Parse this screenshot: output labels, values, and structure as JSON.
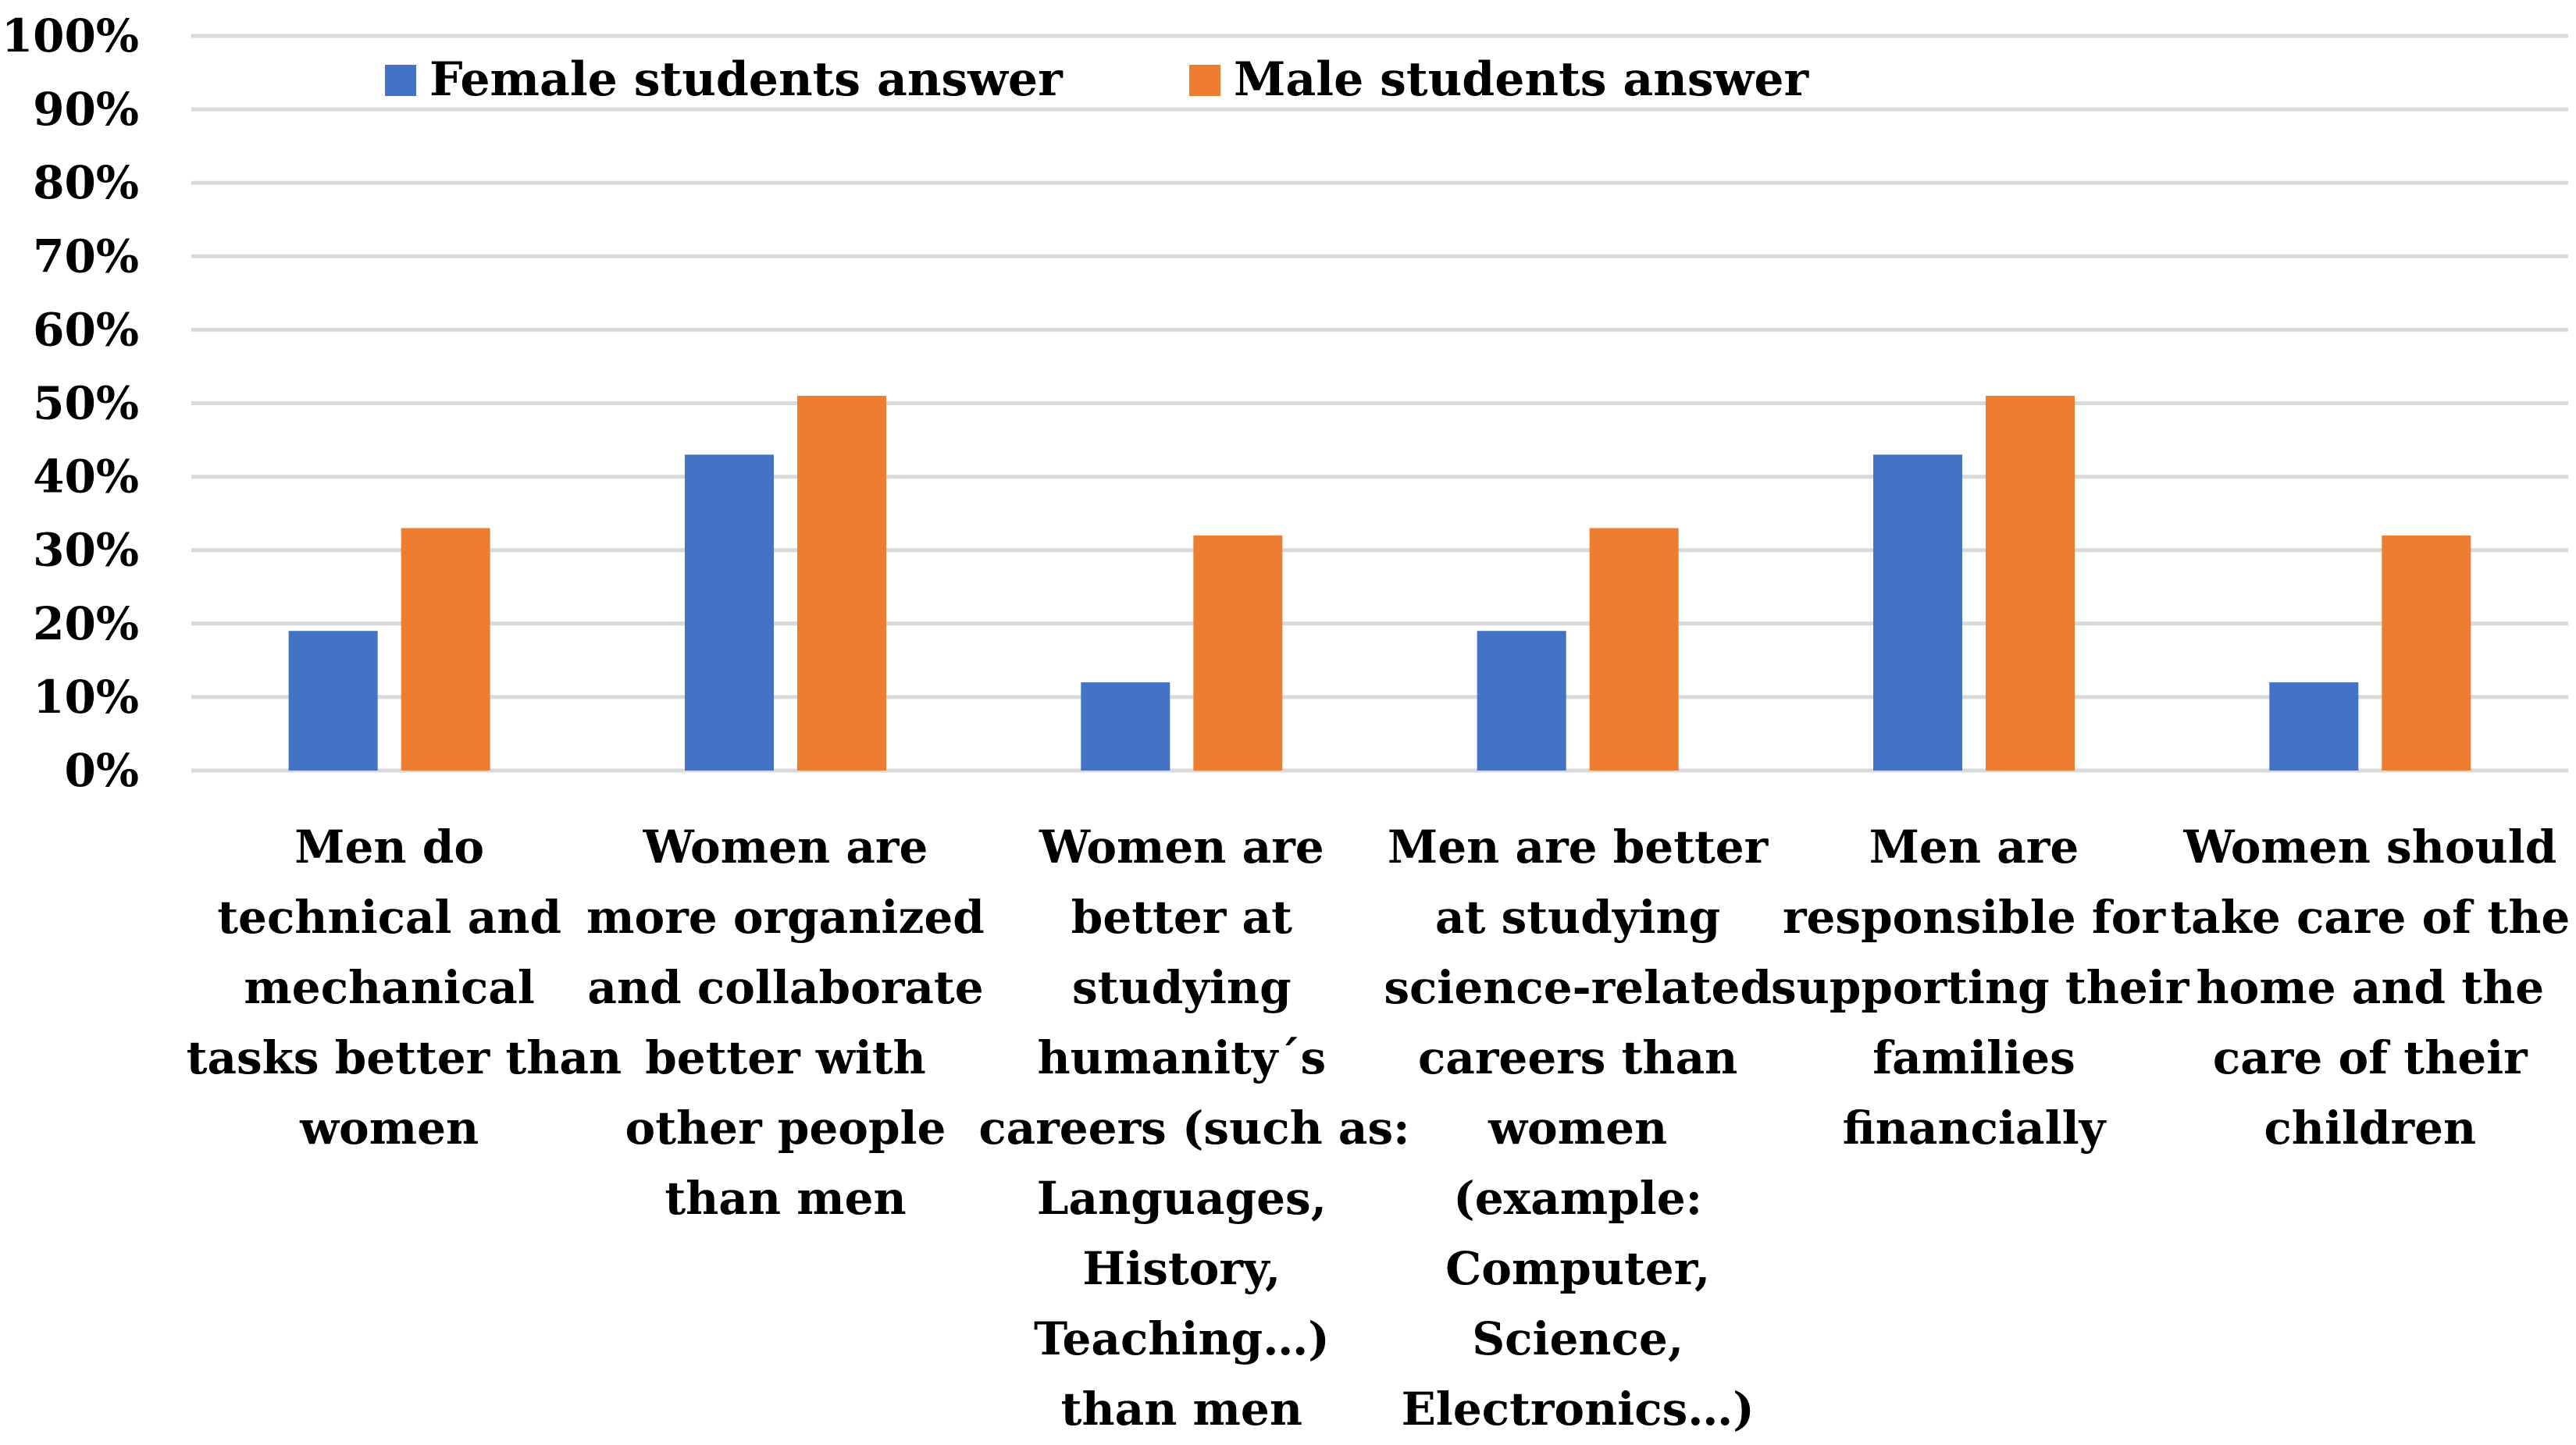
{
  "chart_data": {
    "type": "bar",
    "categories": [
      [
        "Men do",
        "technical and",
        "mechanical",
        "tasks better than",
        "women"
      ],
      [
        "Women are",
        "more organized",
        "and collaborate",
        "better with",
        "other people",
        "than men"
      ],
      [
        "Women are",
        "better at",
        "studying",
        "humanity´s",
        "careers (such as:",
        "Languages,",
        "History,",
        "Teaching…)",
        "than men"
      ],
      [
        "Men are better",
        "at studying",
        "science-related",
        "careers than",
        "women",
        "(example:",
        "Computer,",
        "Science,",
        "Electronics…)"
      ],
      [
        "Men are",
        "responsible for",
        "supporting their",
        "families",
        "financially"
      ],
      [
        "Women should",
        "take care of the",
        "home and the",
        "care of their",
        "children"
      ]
    ],
    "series": [
      {
        "name": "Female students answer",
        "color": "#4472C4",
        "values": [
          19,
          43,
          12,
          19,
          43,
          12
        ]
      },
      {
        "name": "Male students answer",
        "color": "#ED7D31",
        "values": [
          33,
          51,
          32,
          33,
          51,
          32
        ]
      }
    ],
    "y_ticks": [
      "0%",
      "10%",
      "20%",
      "30%",
      "40%",
      "50%",
      "60%",
      "70%",
      "80%",
      "90%",
      "100%"
    ],
    "ylim": [
      0,
      100
    ],
    "grid": true,
    "gridColor": "#D9D9D9",
    "legend": "top-left, inside plot"
  }
}
